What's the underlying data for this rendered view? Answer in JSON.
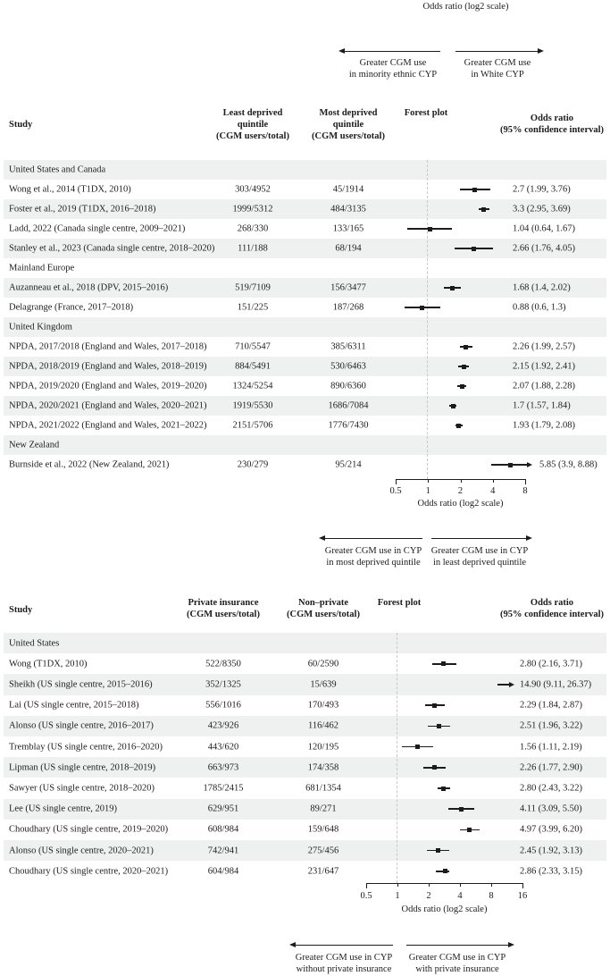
{
  "top_axis_label": "Odds ratio (log2 scale)",
  "colors": {
    "stripe": "#eff1f0",
    "ink": "#1c1c1c",
    "dashed_reference": "#c6c9c8"
  },
  "direction_notes": [
    {
      "left_lines": [
        "Greater CGM use",
        "in minority ethnic CYP"
      ],
      "right_lines": [
        "Greater CGM use",
        "in White CYP"
      ]
    },
    {
      "left_lines": [
        "Greater CGM use in CYP",
        "in most deprived quintile"
      ],
      "right_lines": [
        "Greater CGM use in CYP",
        "in least deprived quintile"
      ]
    },
    {
      "left_lines": [
        "Greater CGM use in CYP",
        "without private insurance"
      ],
      "right_lines": [
        "Greater CGM use in CYP",
        "with private insurance"
      ]
    }
  ],
  "chart_data": [
    {
      "type": "scatter",
      "subtype": "forest-plot",
      "headers": {
        "study": "Study",
        "col2_lines": [
          "Least deprived",
          "quintile",
          "(CGM users/total)"
        ],
        "col3_lines": [
          "Most deprived",
          "quintile",
          "(CGM users/total)"
        ],
        "forest": "Forest plot",
        "or_lines": [
          "Odds ratio",
          "(95% confidence interval)"
        ]
      },
      "xaxis": {
        "label": "Odds ratio (log2 scale)",
        "scale": "log2",
        "ticks": [
          "0.5",
          "1",
          "2",
          "4",
          "8"
        ],
        "range": [
          0.5,
          8
        ],
        "reference_line": 1
      },
      "rows": [
        {
          "group": "United States and Canada"
        },
        {
          "study": "Wong et al., 2014 (T1DX, 2010)",
          "col2": "303/4952",
          "col3": "45/1914",
          "or_text": "2.7 (1.99, 3.76)",
          "or": 2.7,
          "lo": 1.99,
          "hi": 3.76
        },
        {
          "study": "Foster et al., 2019 (T1DX, 2016–2018)",
          "col2": "1999/5312",
          "col3": "484/3135",
          "or_text": "3.3 (2.95, 3.69)",
          "or": 3.3,
          "lo": 2.95,
          "hi": 3.69
        },
        {
          "study": "Ladd, 2022 (Canada single centre, 2009–2021)",
          "col2": "268/330",
          "col3": "133/165",
          "or_text": "1.04 (0.64, 1.67)",
          "or": 1.04,
          "lo": 0.64,
          "hi": 1.67
        },
        {
          "study": "Stanley et al., 2023 (Canada single centre, 2018–2020)",
          "col2": "111/188",
          "col3": "68/194",
          "or_text": "2.66 (1.76, 4.05)",
          "or": 2.66,
          "lo": 1.76,
          "hi": 4.05
        },
        {
          "group": "Mainland Europe"
        },
        {
          "study": "Auzanneau et al., 2018 (DPV, 2015–2016)",
          "col2": "519/7109",
          "col3": "156/3477",
          "or_text": "1.68 (1.4, 2.02)",
          "or": 1.68,
          "lo": 1.4,
          "hi": 2.02
        },
        {
          "study": "Delagrange (France, 2017–2018)",
          "col2": "151/225",
          "col3": "187/268",
          "or_text": "0.88 (0.6, 1.3)",
          "or": 0.88,
          "lo": 0.6,
          "hi": 1.3
        },
        {
          "group": "United Kingdom"
        },
        {
          "study": "NPDA, 2017/2018 (England and Wales, 2017–2018)",
          "col2": "710/5547",
          "col3": "385/6311",
          "or_text": "2.26 (1.99, 2.57)",
          "or": 2.26,
          "lo": 1.99,
          "hi": 2.57
        },
        {
          "study": "NPDA, 2018/2019 (England and Wales, 2018–2019)",
          "col2": "884/5491",
          "col3": "530/6463",
          "or_text": "2.15 (1.92, 2.41)",
          "or": 2.15,
          "lo": 1.92,
          "hi": 2.41
        },
        {
          "study": "NPDA, 2019/2020 (England and Wales, 2019–2020)",
          "col2": "1324/5254",
          "col3": "890/6360",
          "or_text": "2.07 (1.88, 2.28)",
          "or": 2.07,
          "lo": 1.88,
          "hi": 2.28
        },
        {
          "study": "NPDA, 2020/2021 (England and Wales, 2020–2021)",
          "col2": "1919/5530",
          "col3": "1686/7084",
          "or_text": "1.7 (1.57, 1.84)",
          "or": 1.7,
          "lo": 1.57,
          "hi": 1.84
        },
        {
          "study": "NPDA, 2021/2022 (England and Wales, 2021–2022)",
          "col2": "2151/5706",
          "col3": "1776/7430",
          "or_text": "1.93 (1.79, 2.08)",
          "or": 1.93,
          "lo": 1.79,
          "hi": 2.08
        },
        {
          "group": "New Zealand"
        },
        {
          "study": "Burnside et al., 2022 (New Zealand, 2021)",
          "col2": "230/279",
          "col3": "95/214",
          "or_text": "5.85 (3.9, 8.88)",
          "or": 5.85,
          "lo": 3.9,
          "hi": 8.88,
          "arrow": true
        }
      ]
    },
    {
      "type": "scatter",
      "subtype": "forest-plot",
      "headers": {
        "study": "Study",
        "col2_lines": [
          "Private insurance",
          "(CGM users/total)"
        ],
        "col3_lines": [
          "Non–private",
          "(CGM users/total)"
        ],
        "forest": "Forest plot",
        "or_lines": [
          "Odds ratio",
          "(95% confidence interval)"
        ]
      },
      "xaxis": {
        "label": "Odds ratio (log2 scale)",
        "scale": "log2",
        "ticks": [
          "0.5",
          "1",
          "2",
          "4",
          "8",
          "16"
        ],
        "range": [
          0.5,
          16
        ],
        "reference_line": 1
      },
      "rows": [
        {
          "group": "United States"
        },
        {
          "study": "Wong (T1DX, 2010)",
          "col2": "522/8350",
          "col3": "60/2590",
          "or_text": "2.80 (2.16, 3.71)",
          "or": 2.8,
          "lo": 2.16,
          "hi": 3.71
        },
        {
          "study": "Sheikh (US single centre, 2015–2016)",
          "col2": "352/1325",
          "col3": "15/639",
          "or_text": "14.90 (9.11, 26.37)",
          "or": 14.9,
          "lo": 9.11,
          "hi": 26.37,
          "arrow": true,
          "dot": false
        },
        {
          "study": "Lai (US single centre, 2015–2018)",
          "col2": "556/1016",
          "col3": "170/493",
          "or_text": "2.29 (1.84, 2.87)",
          "or": 2.29,
          "lo": 1.84,
          "hi": 2.87
        },
        {
          "study": "Alonso (US single centre, 2016–2017)",
          "col2": "423/926",
          "col3": "116/462",
          "or_text": "2.51 (1.96, 3.22)",
          "or": 2.51,
          "lo": 1.96,
          "hi": 3.22
        },
        {
          "study": "Tremblay (US single centre, 2016–2020)",
          "col2": "443/620",
          "col3": "120/195",
          "or_text": "1.56 (1.11, 2.19)",
          "or": 1.56,
          "lo": 1.11,
          "hi": 2.19
        },
        {
          "study": "Lipman (US single centre, 2018–2019)",
          "col2": "663/973",
          "col3": "174/358",
          "or_text": "2.26 (1.77, 2.90)",
          "or": 2.26,
          "lo": 1.77,
          "hi": 2.9
        },
        {
          "study": "Sawyer (US single centre, 2018–2020)",
          "col2": "1785/2415",
          "col3": "681/1354",
          "or_text": "2.80 (2.43, 3.22)",
          "or": 2.8,
          "lo": 2.43,
          "hi": 3.22
        },
        {
          "study": "Lee (US single centre, 2019)",
          "col2": "629/951",
          "col3": "89/271",
          "or_text": "4.11 (3.09, 5.50)",
          "or": 4.11,
          "lo": 3.09,
          "hi": 5.5
        },
        {
          "study": "Choudhary (US single centre, 2019–2020)",
          "col2": "608/984",
          "col3": "159/648",
          "or_text": "4.97 (3.99, 6.20)",
          "or": 4.97,
          "lo": 3.99,
          "hi": 6.2
        },
        {
          "study": "Alonso (US single centre, 2020–2021)",
          "col2": "742/941",
          "col3": "275/456",
          "or_text": "2.45 (1.92, 3.13)",
          "or": 2.45,
          "lo": 1.92,
          "hi": 3.13
        },
        {
          "study": "Choudhary (US single centre, 2020–2021)",
          "col2": "604/984",
          "col3": "231/647",
          "or_text": "2.86 (2.33, 3.15)",
          "or": 2.86,
          "lo": 2.33,
          "hi": 3.15
        }
      ]
    }
  ]
}
